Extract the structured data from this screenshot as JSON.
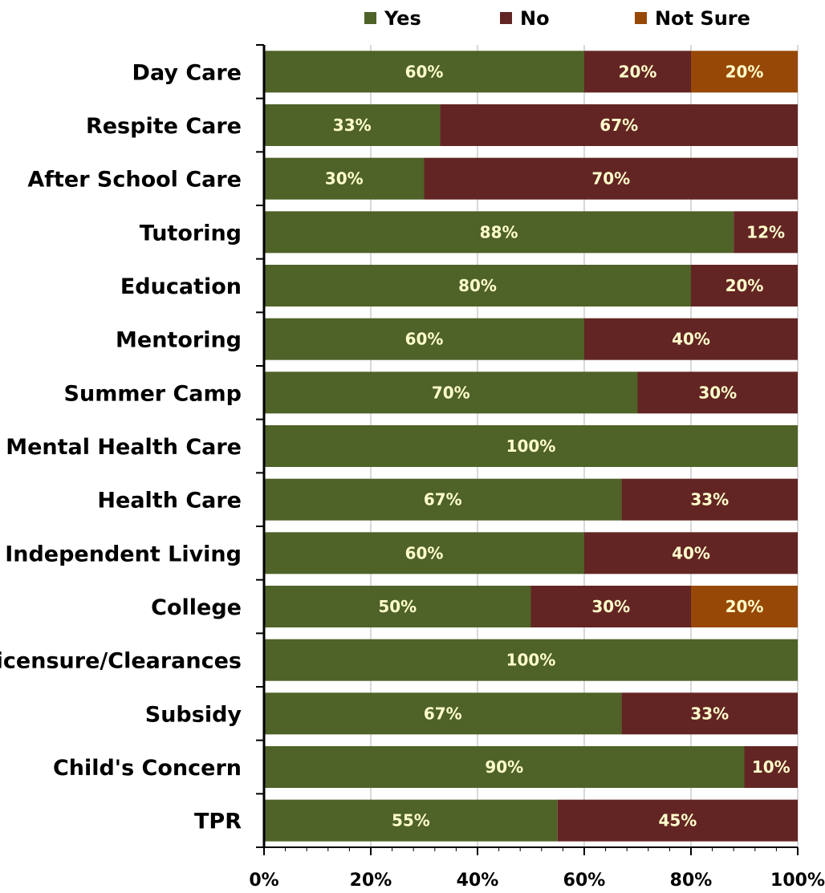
{
  "chart_data": {
    "type": "bar",
    "orientation": "horizontal",
    "stacked": true,
    "normalized_percent": true,
    "categories": [
      "Day Care",
      "Respite Care",
      "After School Care",
      "Tutoring",
      "Education",
      "Mentoring",
      "Summer Camp",
      "Mental Health Care",
      "Health Care",
      "Independent Living",
      "College",
      "Licensure/Clearances",
      "Subsidy",
      "Child's Concern",
      "TPR"
    ],
    "series": [
      {
        "name": "Yes",
        "color": "#4f6228",
        "values": [
          60,
          33,
          30,
          88,
          80,
          60,
          70,
          100,
          67,
          60,
          50,
          100,
          67,
          90,
          55
        ]
      },
      {
        "name": "No",
        "color": "#632523",
        "values": [
          20,
          67,
          70,
          12,
          20,
          40,
          30,
          0,
          33,
          40,
          30,
          0,
          33,
          10,
          45
        ]
      },
      {
        "name": "Not Sure",
        "color": "#974806",
        "values": [
          20,
          0,
          0,
          0,
          0,
          0,
          0,
          0,
          0,
          0,
          20,
          0,
          0,
          0,
          0
        ]
      }
    ],
    "xlim": [
      0,
      100
    ],
    "x_ticks": [
      "0%",
      "20%",
      "40%",
      "60%",
      "80%",
      "100%"
    ],
    "data_label_color": "#ffffcc",
    "gridlines": true,
    "legend_position": "top"
  }
}
